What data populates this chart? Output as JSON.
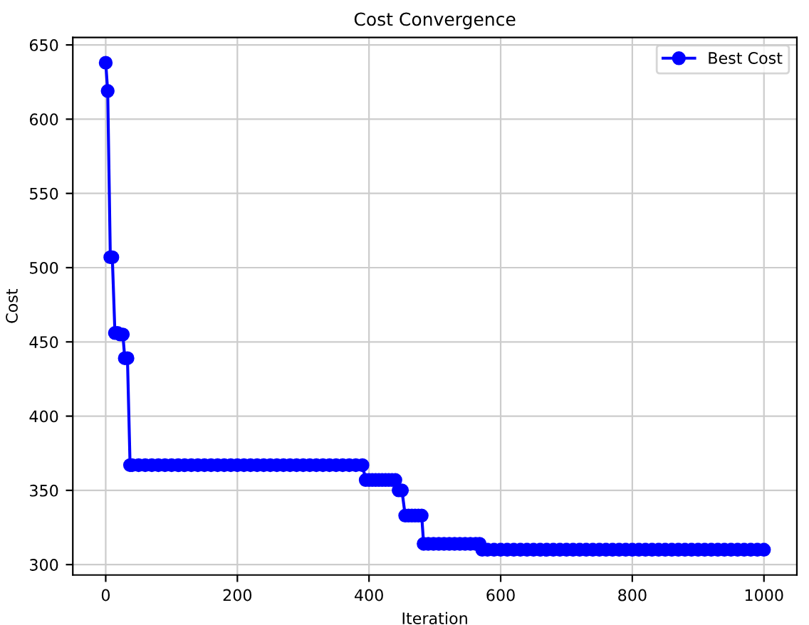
{
  "chart_data": {
    "type": "line",
    "title": "Cost Convergence",
    "xlabel": "Iteration",
    "ylabel": "Cost",
    "series": [
      {
        "name": "Best Cost",
        "color": "#0000ff",
        "x": [
          0,
          3,
          7,
          10,
          14,
          18,
          22,
          26,
          29,
          33,
          37,
          40,
          50,
          60,
          70,
          80,
          90,
          100,
          110,
          120,
          130,
          140,
          150,
          160,
          170,
          180,
          190,
          200,
          210,
          220,
          230,
          240,
          250,
          260,
          270,
          280,
          290,
          300,
          310,
          320,
          330,
          340,
          350,
          360,
          370,
          380,
          390,
          395,
          400,
          405,
          410,
          415,
          420,
          425,
          430,
          435,
          440,
          445,
          450,
          455,
          460,
          465,
          470,
          475,
          480,
          483,
          490,
          498,
          506,
          514,
          522,
          530,
          538,
          546,
          554,
          562,
          568,
          572,
          580,
          590,
          600,
          610,
          620,
          630,
          640,
          650,
          660,
          670,
          680,
          690,
          700,
          710,
          720,
          730,
          740,
          750,
          760,
          770,
          780,
          790,
          800,
          810,
          820,
          830,
          840,
          850,
          860,
          870,
          880,
          890,
          900,
          910,
          920,
          930,
          940,
          950,
          960,
          970,
          980,
          990,
          1000
        ],
        "values": [
          638,
          619,
          507,
          507,
          456,
          456,
          455,
          455,
          439,
          439,
          367,
          367,
          367,
          367,
          367,
          367,
          367,
          367,
          367,
          367,
          367,
          367,
          367,
          367,
          367,
          367,
          367,
          367,
          367,
          367,
          367,
          367,
          367,
          367,
          367,
          367,
          367,
          367,
          367,
          367,
          367,
          367,
          367,
          367,
          367,
          367,
          367,
          357,
          357,
          357,
          357,
          357,
          357,
          357,
          357,
          357,
          357,
          350,
          350,
          333,
          333,
          333,
          333,
          333,
          333,
          314,
          314,
          314,
          314,
          314,
          314,
          314,
          314,
          314,
          314,
          314,
          314,
          310,
          310,
          310,
          310,
          310,
          310,
          310,
          310,
          310,
          310,
          310,
          310,
          310,
          310,
          310,
          310,
          310,
          310,
          310,
          310,
          310,
          310,
          310,
          310,
          310,
          310,
          310,
          310,
          310,
          310,
          310,
          310,
          310,
          310,
          310,
          310,
          310,
          310,
          310,
          310,
          310,
          310,
          310,
          310
        ]
      }
    ],
    "xlim": [
      -50,
      1050
    ],
    "ylim": [
      293,
      655
    ],
    "xticks": [
      0,
      200,
      400,
      600,
      800,
      1000
    ],
    "yticks": [
      300,
      350,
      400,
      450,
      500,
      550,
      600,
      650
    ],
    "grid": true,
    "legend": "upper right",
    "marker": "circle",
    "line_style": "solid"
  }
}
